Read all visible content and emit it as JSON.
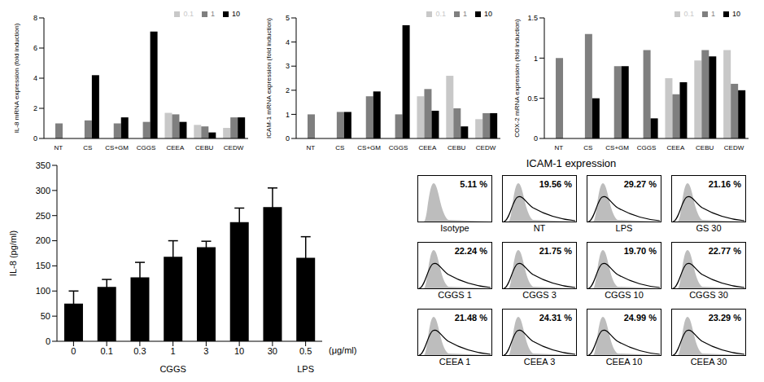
{
  "chart_data": [
    {
      "type": "bar",
      "y_label": "IL-8 mRNA expression (fold induction)",
      "categories": [
        "NT",
        "CS",
        "CS+GM",
        "CGGS",
        "CEEA",
        "CEBU",
        "CEDW"
      ],
      "ylim": [
        0,
        8
      ],
      "yticks": [
        0,
        2,
        4,
        6,
        8
      ],
      "legend": "upper right",
      "series": [
        {
          "name": "0.1",
          "color": "#c8c8c8",
          "values": [
            null,
            null,
            null,
            null,
            1.7,
            0.9,
            0.7
          ]
        },
        {
          "name": "1",
          "color": "#7f7f7f",
          "values": [
            1.0,
            1.2,
            1.0,
            1.1,
            1.6,
            0.8,
            1.4
          ]
        },
        {
          "name": "10",
          "color": "#000000",
          "values": [
            null,
            4.2,
            1.4,
            7.1,
            1.1,
            0.4,
            1.4
          ]
        }
      ]
    },
    {
      "type": "bar",
      "y_label": "ICAM-1 mRNA expression (fold induction)",
      "categories": [
        "NT",
        "CS",
        "CS+GM",
        "CGGS",
        "CEEA",
        "CEBU",
        "CEDW"
      ],
      "ylim": [
        0,
        5
      ],
      "yticks": [
        0,
        1,
        2,
        3,
        4,
        5
      ],
      "legend": "upper right",
      "series": [
        {
          "name": "0.1",
          "color": "#c8c8c8",
          "values": [
            null,
            null,
            null,
            null,
            1.75,
            2.6,
            0.8
          ]
        },
        {
          "name": "1",
          "color": "#7f7f7f",
          "values": [
            1.0,
            1.1,
            1.75,
            1.0,
            2.05,
            1.25,
            1.05
          ]
        },
        {
          "name": "10",
          "color": "#000000",
          "values": [
            null,
            1.1,
            1.95,
            4.7,
            1.15,
            0.5,
            1.05
          ]
        }
      ]
    },
    {
      "type": "bar",
      "y_label": "COX-2 mRNA expression (fold induction)",
      "categories": [
        "NT",
        "CS",
        "CS+GM",
        "CGGS",
        "CEEA",
        "CEBU",
        "CEDW"
      ],
      "ylim": [
        0,
        1.5
      ],
      "yticks": [
        0,
        0.5,
        1,
        1.5
      ],
      "legend": "upper right",
      "series": [
        {
          "name": "0.1",
          "color": "#c8c8c8",
          "values": [
            null,
            null,
            null,
            null,
            0.75,
            0.97,
            1.1
          ]
        },
        {
          "name": "1",
          "color": "#7f7f7f",
          "values": [
            1.0,
            1.3,
            0.9,
            1.1,
            0.55,
            1.1,
            0.68
          ]
        },
        {
          "name": "10",
          "color": "#000000",
          "values": [
            null,
            0.5,
            0.9,
            0.25,
            0.7,
            1.02,
            0.6
          ]
        }
      ]
    },
    {
      "type": "bar",
      "y_label": "IL-8 (pg/ml)",
      "x_unit": "(μg/ml)",
      "categories": [
        "0",
        "0.1",
        "0.3",
        "1",
        "3",
        "10",
        "30",
        "0.5"
      ],
      "groups": [
        "CGGS",
        "CGGS",
        "CGGS",
        "CGGS",
        "CGGS",
        "CGGS",
        "CGGS",
        "LPS"
      ],
      "values": [
        75,
        108,
        127,
        168,
        187,
        237,
        267,
        166
      ],
      "errors": [
        25,
        15,
        30,
        32,
        12,
        28,
        38,
        42
      ],
      "color": "#000000",
      "ylim": [
        0,
        350
      ],
      "yticks": [
        0,
        50,
        100,
        150,
        200,
        250,
        300,
        350
      ]
    },
    {
      "type": "flow_cytometry",
      "title": "ICAM-1 expression",
      "panels": [
        {
          "label": "Isotype",
          "value": 5.11,
          "value_label": "5.11 %"
        },
        {
          "label": "NT",
          "value": 19.56,
          "value_label": "19.56 %"
        },
        {
          "label": "LPS",
          "value": 29.27,
          "value_label": "29.27 %"
        },
        {
          "label": "GS 30",
          "value": 21.16,
          "value_label": "21.16 %"
        },
        {
          "label": "CGGS 1",
          "value": 22.24,
          "value_label": "22.24 %"
        },
        {
          "label": "CGGS 3",
          "value": 21.75,
          "value_label": "21.75 %"
        },
        {
          "label": "CGGS 10",
          "value": 19.7,
          "value_label": "19.70 %"
        },
        {
          "label": "CGGS 30",
          "value": 22.77,
          "value_label": "22.77 %"
        },
        {
          "label": "CEEA 1",
          "value": 21.48,
          "value_label": "21.48 %"
        },
        {
          "label": "CEEA 3",
          "value": 24.31,
          "value_label": "24.31 %"
        },
        {
          "label": "CEEA 10",
          "value": 24.99,
          "value_label": "24.99 %"
        },
        {
          "label": "CEEA 30",
          "value": 23.29,
          "value_label": "23.29 %"
        }
      ]
    }
  ]
}
